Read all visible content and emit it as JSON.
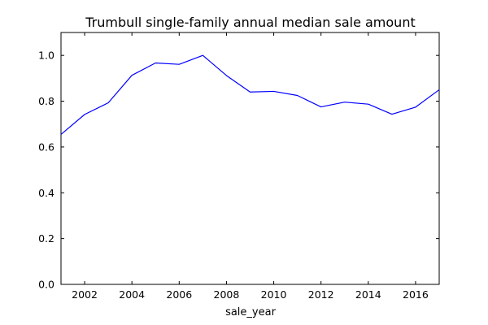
{
  "chart_data": {
    "type": "line",
    "title": "Trumbull single-family annual median sale amount",
    "xlabel": "sale_year",
    "ylabel": "",
    "xlim": [
      2001,
      2017
    ],
    "ylim": [
      0.0,
      1.1
    ],
    "xticks": [
      2002,
      2004,
      2006,
      2008,
      2010,
      2012,
      2014,
      2016
    ],
    "yticks": [
      0.0,
      0.2,
      0.4,
      0.6,
      0.8,
      1.0
    ],
    "ytick_labels": [
      "0.0",
      "0.2",
      "0.4",
      "0.6",
      "0.8",
      "1.0"
    ],
    "grid": false,
    "line_color": "#0000ff",
    "x": [
      2001,
      2002,
      2003,
      2004,
      2005,
      2006,
      2007,
      2008,
      2009,
      2010,
      2011,
      2012,
      2013,
      2014,
      2015,
      2016,
      2017
    ],
    "series": [
      {
        "values": [
          0.655,
          0.742,
          0.793,
          0.913,
          0.967,
          0.961,
          1.0,
          0.912,
          0.84,
          0.843,
          0.825,
          0.775,
          0.796,
          0.787,
          0.743,
          0.774,
          0.85
        ]
      }
    ]
  }
}
